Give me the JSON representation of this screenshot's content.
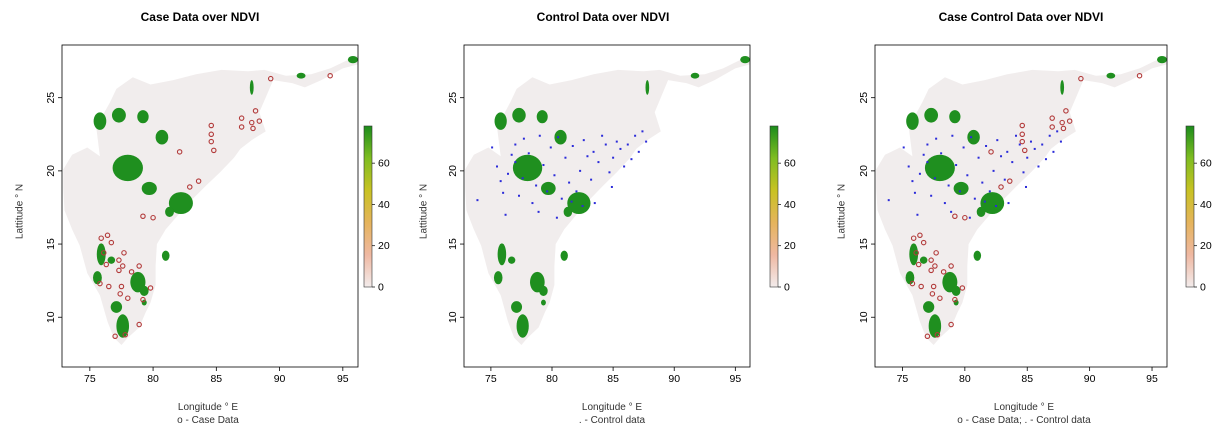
{
  "panels": [
    {
      "title": "Case Data over NDVI",
      "xlabel": "Longitude ° E",
      "ylabel": "Lattitude ° N",
      "sublabel": "o - Case Data",
      "show_case": true,
      "show_control": false
    },
    {
      "title": "Control Data over NDVI",
      "xlabel": "Longitude ° E",
      "ylabel": "Lattitude ° N",
      "sublabel": ". - Control data",
      "show_case": false,
      "show_control": true
    },
    {
      "title": "Case Control Data over NDVI",
      "xlabel": "Longitude ° E",
      "ylabel": "Lattitude ° N",
      "sublabel": "o - Case Data; . - Control data",
      "show_case": true,
      "show_control": true
    }
  ],
  "axes": {
    "x_ticks": [
      75,
      80,
      85,
      90,
      95
    ],
    "y_ticks": [
      10,
      15,
      20,
      25
    ],
    "xlim": [
      72.8,
      96.2
    ],
    "ylim": [
      6.6,
      28.6
    ]
  },
  "colorbar": {
    "ticks": [
      0,
      20,
      40,
      60
    ],
    "range": [
      0,
      78
    ],
    "colors": [
      "#f3ecec",
      "#efb8a2",
      "#e5b45c",
      "#c8c223",
      "#7fbd21",
      "#1c8c1c"
    ]
  },
  "colors": {
    "land": "#f1eded",
    "vegetation": "#1f8f1f",
    "case": "#b23a3a",
    "control": "#2b2bd9"
  },
  "chart_data": {
    "type": "scatter",
    "case_points": [
      [
        89.3,
        26.3
      ],
      [
        94.0,
        26.5
      ],
      [
        84.6,
        23.1
      ],
      [
        84.6,
        22.5
      ],
      [
        84.6,
        22.0
      ],
      [
        84.8,
        21.4
      ],
      [
        87.0,
        23.6
      ],
      [
        87.0,
        23.0
      ],
      [
        88.1,
        24.1
      ],
      [
        87.8,
        23.3
      ],
      [
        88.4,
        23.4
      ],
      [
        87.9,
        22.9
      ],
      [
        82.1,
        21.3
      ],
      [
        83.6,
        19.3
      ],
      [
        82.9,
        18.9
      ],
      [
        79.2,
        16.9
      ],
      [
        80.0,
        16.8
      ],
      [
        75.9,
        15.4
      ],
      [
        76.4,
        15.6
      ],
      [
        76.7,
        15.1
      ],
      [
        76.1,
        14.4
      ],
      [
        77.7,
        14.4
      ],
      [
        76.3,
        13.6
      ],
      [
        77.3,
        13.9
      ],
      [
        77.6,
        13.5
      ],
      [
        78.3,
        13.1
      ],
      [
        78.9,
        13.5
      ],
      [
        77.3,
        13.2
      ],
      [
        75.8,
        12.3
      ],
      [
        76.5,
        12.1
      ],
      [
        77.5,
        12.1
      ],
      [
        77.4,
        11.6
      ],
      [
        78.0,
        11.3
      ],
      [
        79.2,
        11.2
      ],
      [
        79.8,
        12.0
      ],
      [
        77.0,
        8.7
      ],
      [
        77.8,
        8.8
      ],
      [
        78.9,
        9.5
      ]
    ],
    "control_points": [
      [
        73.9,
        18.0
      ],
      [
        75.1,
        21.6
      ],
      [
        75.5,
        20.3
      ],
      [
        75.8,
        19.3
      ],
      [
        76.0,
        18.5
      ],
      [
        76.4,
        19.8
      ],
      [
        76.7,
        21.1
      ],
      [
        77.0,
        20.6
      ],
      [
        77.3,
        18.3
      ],
      [
        77.6,
        19.5
      ],
      [
        77.7,
        22.2
      ],
      [
        78.1,
        21.2
      ],
      [
        78.4,
        17.8
      ],
      [
        78.7,
        19.0
      ],
      [
        79.0,
        22.4
      ],
      [
        79.3,
        20.4
      ],
      [
        79.6,
        18.6
      ],
      [
        79.9,
        21.6
      ],
      [
        80.2,
        19.7
      ],
      [
        80.5,
        22.3
      ],
      [
        80.8,
        18.1
      ],
      [
        81.1,
        20.9
      ],
      [
        81.4,
        19.2
      ],
      [
        81.7,
        21.7
      ],
      [
        82.0,
        18.6
      ],
      [
        82.3,
        20.0
      ],
      [
        82.6,
        22.1
      ],
      [
        82.9,
        21.0
      ],
      [
        83.2,
        19.4
      ],
      [
        83.5,
        17.8
      ],
      [
        83.8,
        20.6
      ],
      [
        84.1,
        22.4
      ],
      [
        84.4,
        21.8
      ],
      [
        84.7,
        19.9
      ],
      [
        85.0,
        20.9
      ],
      [
        85.3,
        22.0
      ],
      [
        85.6,
        21.5
      ],
      [
        85.9,
        20.3
      ],
      [
        86.2,
        21.8
      ],
      [
        86.5,
        20.8
      ],
      [
        86.8,
        22.4
      ],
      [
        87.1,
        21.3
      ],
      [
        87.4,
        22.7
      ],
      [
        87.7,
        22.0
      ],
      [
        76.2,
        17.0
      ],
      [
        80.4,
        16.8
      ],
      [
        82.5,
        17.6
      ],
      [
        83.4,
        21.3
      ],
      [
        81.6,
        17.9
      ],
      [
        84.9,
        18.9
      ],
      [
        78.9,
        17.2
      ],
      [
        77.0,
        21.8
      ]
    ]
  }
}
